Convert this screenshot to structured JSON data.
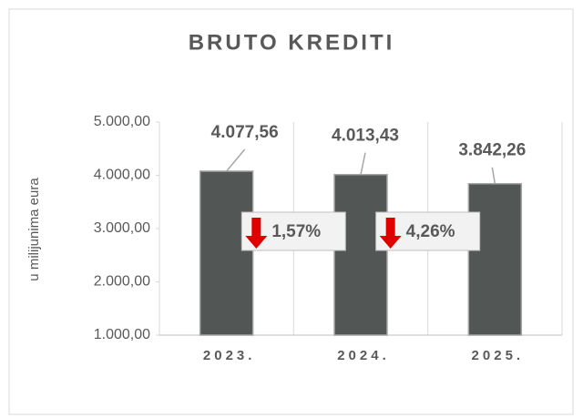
{
  "chart_data": {
    "type": "bar",
    "title": "BRUTO KREDITI",
    "y_label": "u milijunima eura",
    "categories": [
      "2023.",
      "2024.",
      "2025."
    ],
    "values": [
      4077.56,
      4013.43,
      3842.26
    ],
    "value_labels": [
      "4.077,56",
      "4.013,43",
      "3.842,26"
    ],
    "color": "#525756",
    "ylim": [
      1000,
      5000
    ],
    "yticks": [
      {
        "value": 1000,
        "label": "1.000,00"
      },
      {
        "value": 2000,
        "label": "2.000,00"
      },
      {
        "value": 3000,
        "label": "3.000,00"
      },
      {
        "value": 4000,
        "label": "4.000,00"
      },
      {
        "value": 5000,
        "label": "5.000,00"
      }
    ],
    "annotations": [
      "1,57%",
      "4,26%"
    ]
  }
}
